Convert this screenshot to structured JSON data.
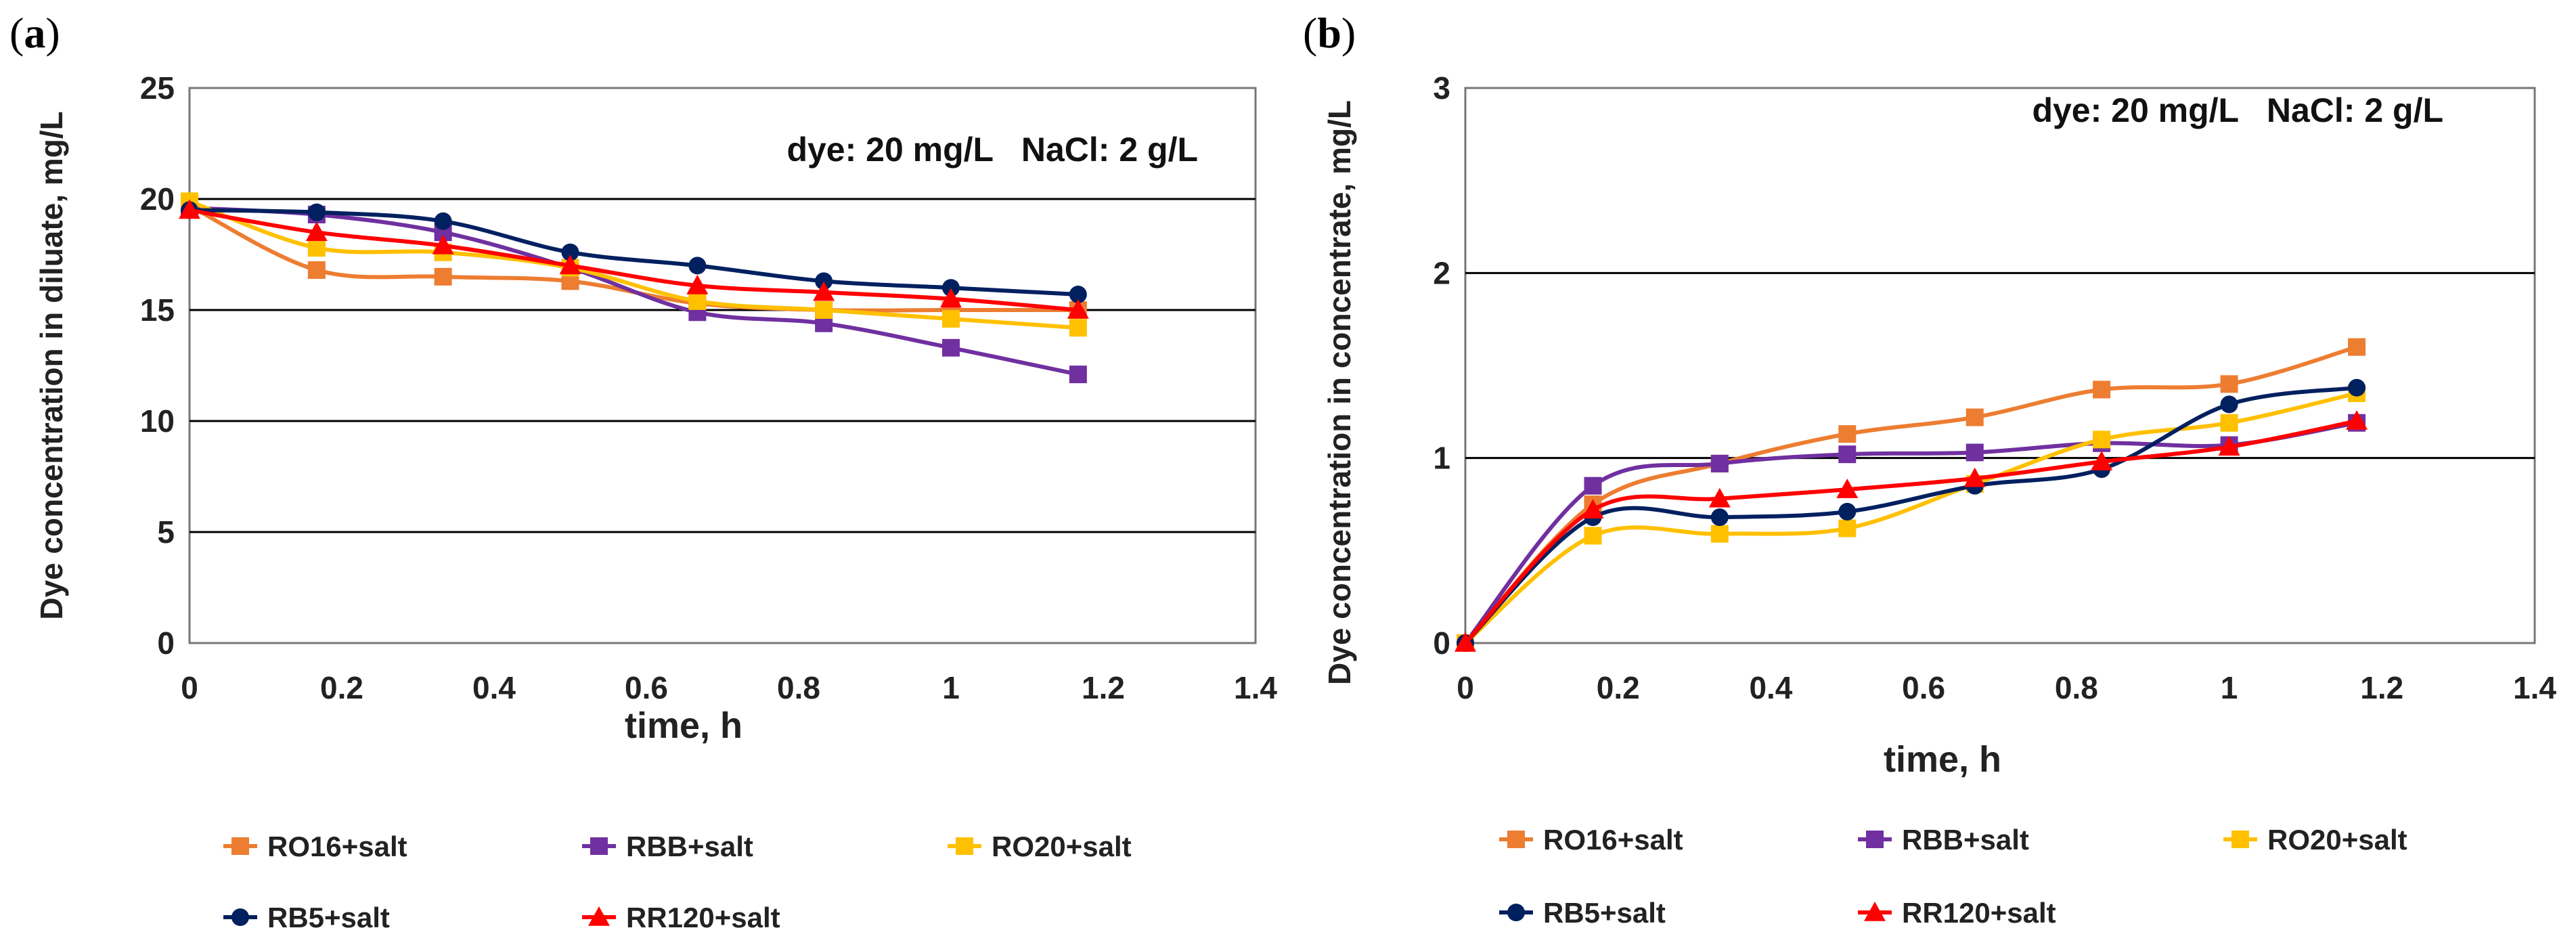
{
  "chart_data": [
    {
      "panel": "a",
      "type": "line",
      "xlabel": "time, h",
      "ylabel": "Dye concentration in diluate, mg/L",
      "annotation": "dye: 20 mg/L   NaCl: 2 g/L",
      "xlim": [
        0,
        1.4
      ],
      "ylim": [
        0,
        25
      ],
      "xticks": [
        0,
        0.2,
        0.4,
        0.6,
        0.8,
        1,
        1.2,
        1.4
      ],
      "yticks": [
        0,
        5,
        10,
        15,
        20,
        25
      ],
      "xtick_labels": [
        "0",
        "0.2",
        "0.4",
        "0.6",
        "0.8",
        "1",
        "1.2",
        "1.4"
      ],
      "ytick_labels": [
        "0",
        "5",
        "10",
        "15",
        "20",
        "25"
      ],
      "gridlines": [
        5,
        10,
        15,
        20
      ],
      "x": [
        0,
        0.167,
        0.333,
        0.5,
        0.667,
        0.833,
        1.0,
        1.167
      ],
      "series": [
        {
          "name": "RO16+salt",
          "color": "#ED7D31",
          "marker": "square",
          "values": [
            19.7,
            16.8,
            16.5,
            16.3,
            15.3,
            15.0,
            15.0,
            15.0
          ]
        },
        {
          "name": "RBB+salt",
          "color": "#7030A0",
          "marker": "square",
          "values": [
            19.6,
            19.3,
            18.5,
            16.9,
            14.9,
            14.4,
            13.3,
            12.1
          ]
        },
        {
          "name": "RO20+salt",
          "color": "#FFC000",
          "marker": "square",
          "values": [
            19.9,
            17.8,
            17.6,
            16.9,
            15.4,
            15.0,
            14.6,
            14.2
          ]
        },
        {
          "name": "RB5+salt",
          "color": "#002060",
          "marker": "circle",
          "values": [
            19.5,
            19.4,
            19.0,
            17.6,
            17.0,
            16.3,
            16.0,
            15.7
          ]
        },
        {
          "name": "RR120+salt",
          "color": "#FF0000",
          "marker": "triangle",
          "values": [
            19.5,
            18.5,
            17.9,
            17.0,
            16.1,
            15.8,
            15.5,
            15.0
          ]
        }
      ]
    },
    {
      "panel": "b",
      "type": "line",
      "xlabel": "time, h",
      "ylabel": "Dye concentration in concentrate, mg/L",
      "annotation": "dye: 20 mg/L   NaCl: 2 g/L",
      "xlim": [
        0,
        1.4
      ],
      "ylim": [
        0,
        3
      ],
      "xticks": [
        0,
        0.2,
        0.4,
        0.6,
        0.8,
        1,
        1.2,
        1.4
      ],
      "yticks": [
        0,
        1,
        2,
        3
      ],
      "xtick_labels": [
        "0",
        "0.2",
        "0.4",
        "0.6",
        "0.8",
        "1",
        "1.2",
        "1.4"
      ],
      "ytick_labels": [
        "0",
        "1",
        "2",
        "3"
      ],
      "gridlines": [
        1,
        2
      ],
      "x": [
        0,
        0.167,
        0.333,
        0.5,
        0.667,
        0.833,
        1.0,
        1.167
      ],
      "series": [
        {
          "name": "RO16+salt",
          "color": "#ED7D31",
          "marker": "square",
          "values": [
            0,
            0.75,
            0.97,
            1.13,
            1.22,
            1.37,
            1.4,
            1.6
          ]
        },
        {
          "name": "RBB+salt",
          "color": "#7030A0",
          "marker": "square",
          "values": [
            0,
            0.85,
            0.97,
            1.02,
            1.03,
            1.08,
            1.07,
            1.19
          ]
        },
        {
          "name": "RO20+salt",
          "color": "#FFC000",
          "marker": "square",
          "values": [
            0,
            0.58,
            0.59,
            0.62,
            0.86,
            1.1,
            1.19,
            1.35
          ]
        },
        {
          "name": "RB5+salt",
          "color": "#002060",
          "marker": "circle",
          "values": [
            0,
            0.68,
            0.68,
            0.71,
            0.85,
            0.94,
            1.29,
            1.38
          ]
        },
        {
          "name": "RR120+salt",
          "color": "#FF0000",
          "marker": "triangle",
          "values": [
            0,
            0.72,
            0.78,
            0.83,
            0.89,
            0.98,
            1.06,
            1.2
          ]
        }
      ]
    }
  ]
}
